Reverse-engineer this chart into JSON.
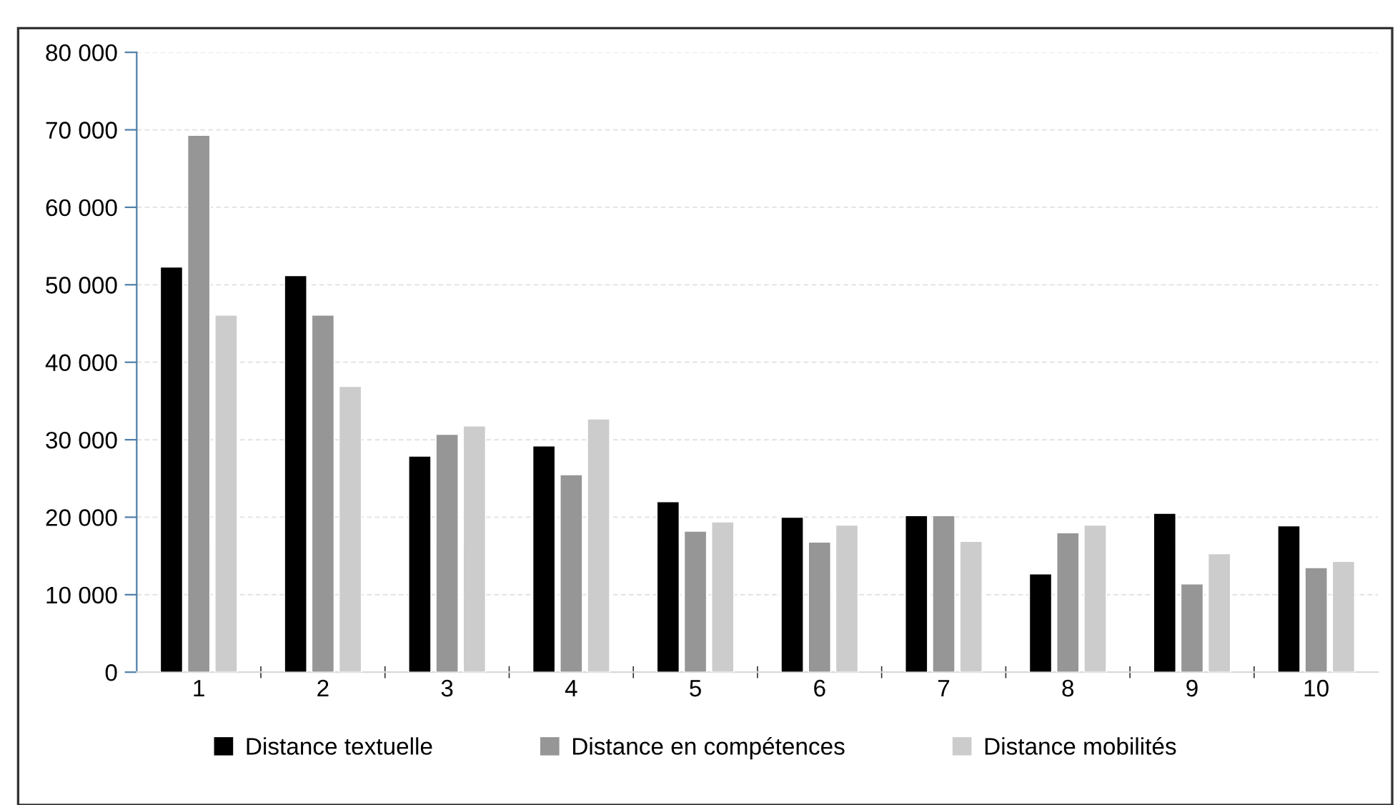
{
  "chart_data": {
    "type": "bar",
    "categories": [
      "1",
      "2",
      "3",
      "4",
      "5",
      "6",
      "7",
      "8",
      "9",
      "10"
    ],
    "series": [
      {
        "name": "Distance textuelle",
        "color": "#000000",
        "values": [
          52300,
          51200,
          27900,
          29200,
          22000,
          20000,
          20200,
          12700,
          20500,
          18900
        ]
      },
      {
        "name": "Distance en compétences",
        "color": "#969696",
        "values": [
          69300,
          46100,
          30700,
          25500,
          18200,
          16800,
          20200,
          18000,
          11400,
          13500
        ]
      },
      {
        "name": "Distance mobilités",
        "color": "#cccccc",
        "values": [
          46100,
          36900,
          31800,
          32700,
          19400,
          19000,
          16900,
          19000,
          15300,
          14300
        ]
      }
    ],
    "ylim": [
      0,
      80000
    ],
    "yticks": [
      0,
      {
        "value": 10000,
        "label": "10 000"
      },
      {
        "value": 20000,
        "label": "20 000"
      },
      {
        "value": 30000,
        "label": "30 000"
      },
      {
        "value": 40000,
        "label": "40 000"
      },
      {
        "value": 50000,
        "label": "50 000"
      },
      {
        "value": 60000,
        "label": "60 000"
      },
      {
        "value": 70000,
        "label": "70 000"
      },
      {
        "value": 80000,
        "label": "80 000"
      }
    ],
    "grid": "y",
    "legend": "bottom"
  }
}
